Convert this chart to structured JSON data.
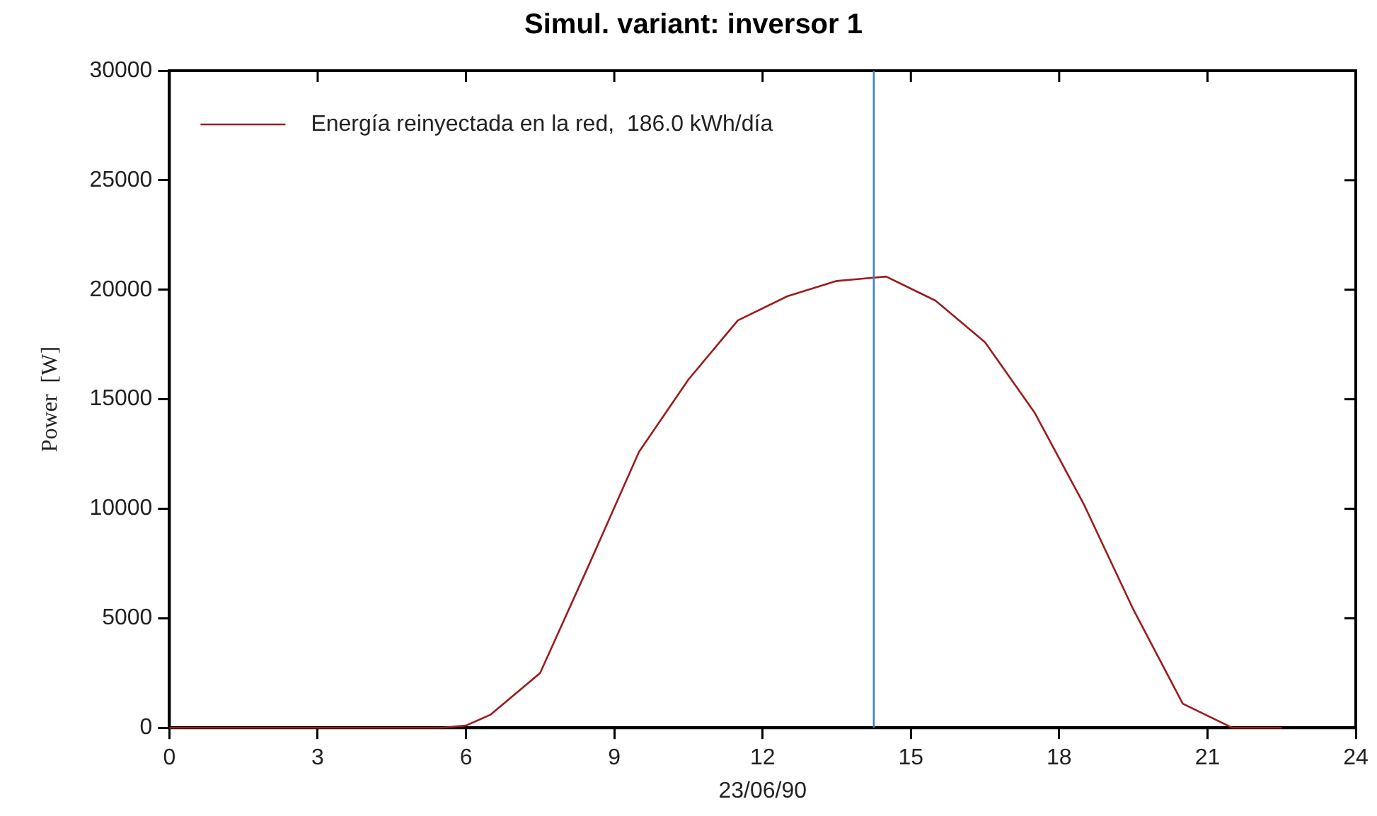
{
  "chart_data": {
    "type": "line",
    "title": "Simul. variant: inversor 1",
    "xlabel": "23/06/90",
    "ylabel": "Power  [W]",
    "x": [
      0,
      5.5,
      6,
      6.5,
      7.5,
      8.5,
      9.5,
      10.5,
      11.5,
      12.5,
      13.5,
      14,
      14.5,
      15.5,
      16.5,
      17.5,
      18.5,
      19.5,
      20.5,
      21.5,
      22.5
    ],
    "series": [
      {
        "name": "Energía reinyectada en la red,  186.0 kWh/día",
        "color": "#9b1c1c",
        "values": [
          0,
          0,
          100,
          600,
          2500,
          7500,
          12600,
          15900,
          18600,
          19700,
          20400,
          20500,
          20600,
          19500,
          17600,
          14400,
          10200,
          5400,
          1100,
          0,
          0
        ]
      }
    ],
    "xlim": [
      0,
      24
    ],
    "xticks": [
      0,
      3,
      6,
      9,
      12,
      15,
      18,
      21,
      24
    ],
    "ylim": [
      0,
      30000
    ],
    "yticks": [
      0,
      5000,
      10000,
      15000,
      20000,
      25000,
      30000
    ],
    "ref_lines": [
      {
        "axis": "x",
        "value": 14.25,
        "color": "#3a7fc6"
      }
    ],
    "grid": false,
    "legend": "top left",
    "marker": "none",
    "line_style": "solid"
  }
}
